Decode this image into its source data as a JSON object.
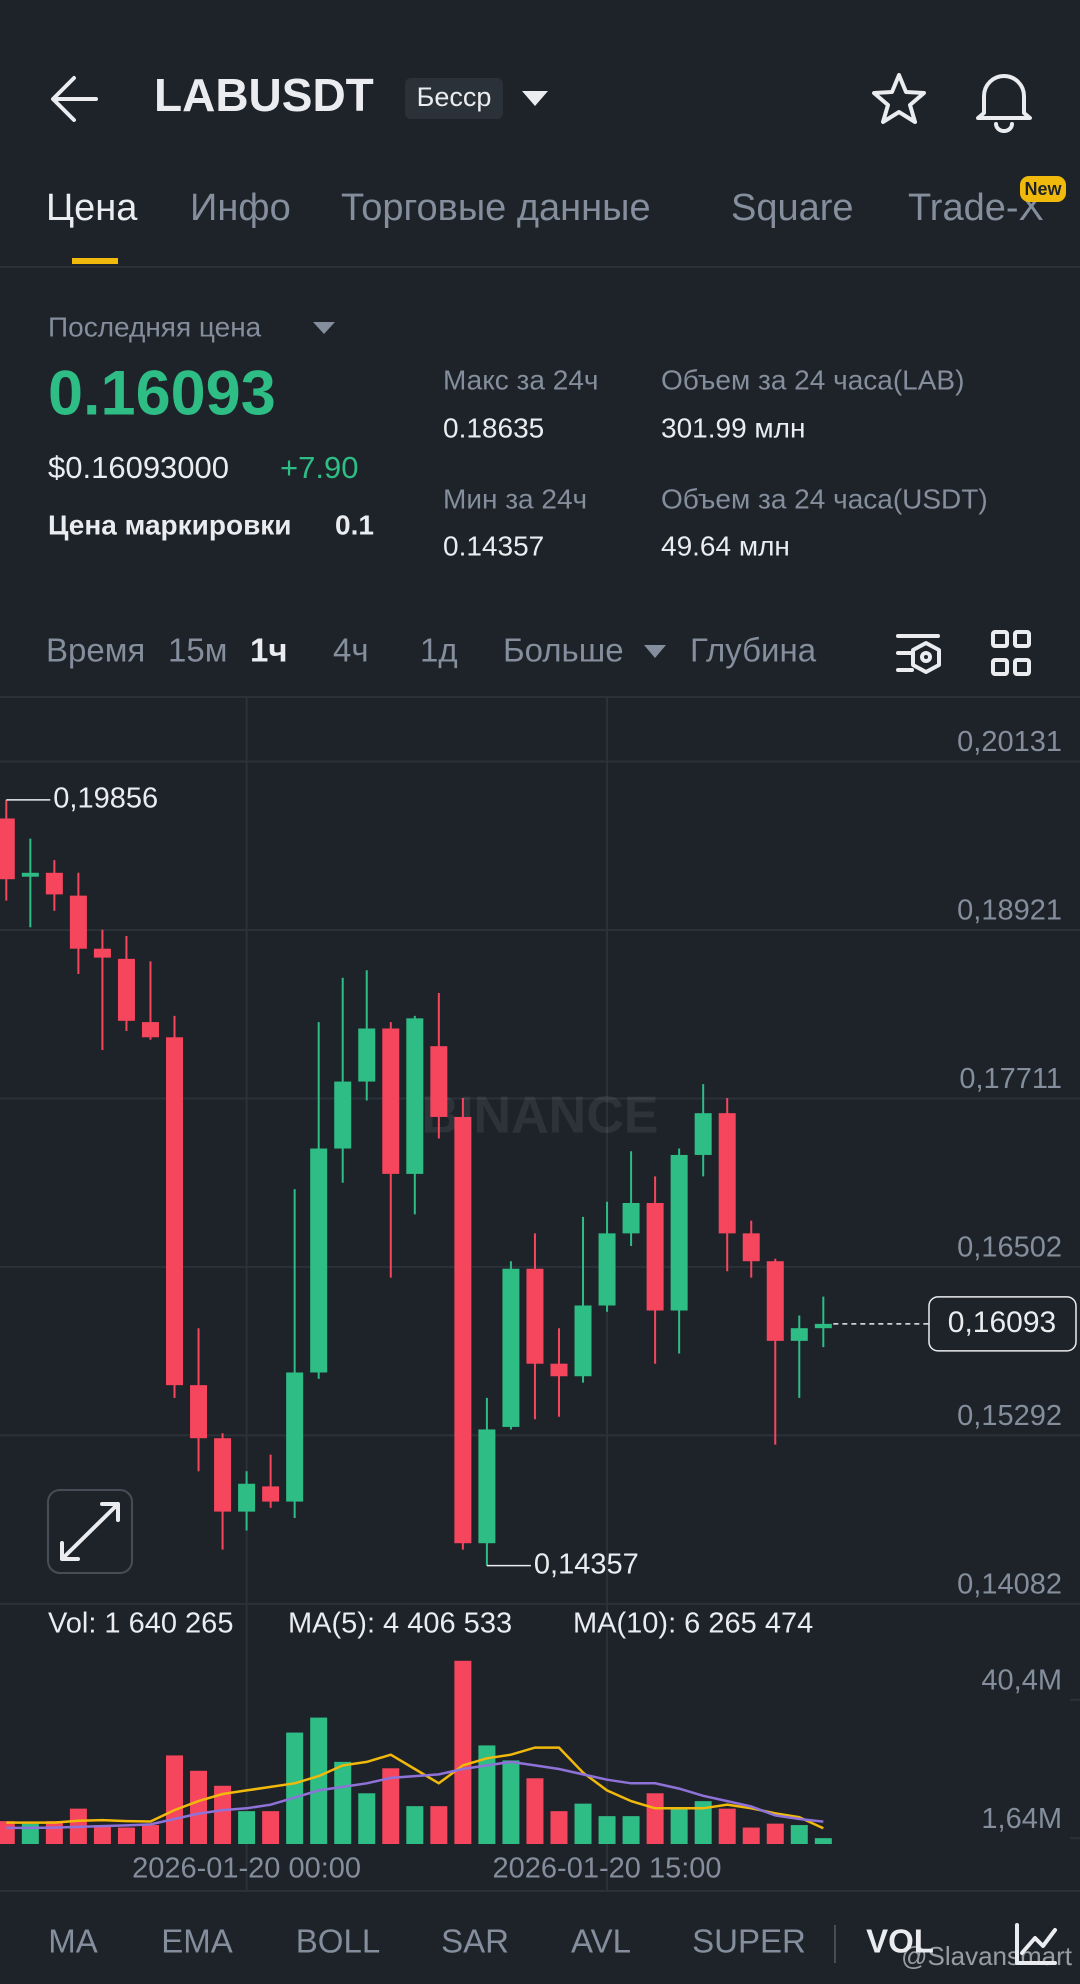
{
  "header": {
    "symbol": "LABUSDT",
    "badge": "Бесср"
  },
  "tabs": {
    "items": [
      "Цена",
      "Инфо",
      "Торговые данные",
      "Square",
      "Trade-X"
    ],
    "new_badge": "New"
  },
  "price_panel": {
    "last_price_label": "Последняя цена",
    "last_price": "0.16093",
    "usd_price": "$0.16093000",
    "change": "+7.90",
    "mark_label": "Цена маркировки",
    "mark_value": "0.1",
    "stats": [
      {
        "label": "Макс за 24ч",
        "value": "0.18635"
      },
      {
        "label": "Мин за 24ч",
        "value": "0.14357"
      },
      {
        "label": "Объем за 24 часа(LAB)",
        "value": "301.99 млн"
      },
      {
        "label": "Объем за 24 часа(USDT)",
        "value": "49.64 млн"
      }
    ]
  },
  "timeframes": {
    "items": [
      "Время",
      "15м",
      "1ч",
      "4ч",
      "1д",
      "Больше",
      "Глубина"
    ]
  },
  "indicators": {
    "items": [
      "MA",
      "EMA",
      "BOLL",
      "SAR",
      "AVL",
      "SUPER",
      "VOL"
    ]
  },
  "watermark": "@Slavansmart",
  "chart_data": [
    {
      "type": "candlestick",
      "watermark": "BINANCE",
      "categories": [
        null,
        null,
        null,
        null,
        null,
        null,
        null,
        null,
        null,
        null,
        "2026-01-20 00:00",
        null,
        null,
        null,
        null,
        null,
        null,
        null,
        null,
        null,
        null,
        null,
        null,
        null,
        null,
        "2026-01-20 15:00",
        null,
        null,
        null,
        null,
        null,
        null,
        null,
        null,
        null
      ],
      "open": [
        0.19722,
        0.19304,
        0.19332,
        0.19168,
        0.18787,
        0.18714,
        0.1826,
        0.18151,
        0.15653,
        0.15272,
        0.14745,
        0.14926,
        0.14817,
        0.15744,
        0.17352,
        0.17833,
        0.18214,
        0.1717,
        0.18087,
        0.17579,
        0.14518,
        0.15353,
        0.16489,
        0.15807,
        0.15717,
        0.16225,
        0.16743,
        0.16961,
        0.16189,
        0.17306,
        0.17606,
        0.16743,
        0.16543,
        0.15971,
        0.16062
      ],
      "high": [
        0.19856,
        0.19577,
        0.19423,
        0.19332,
        0.18923,
        0.18878,
        0.18696,
        0.18305,
        0.16062,
        0.15308,
        0.15035,
        0.15154,
        0.17061,
        0.1826,
        0.18578,
        0.18632,
        0.1826,
        0.18305,
        0.18469,
        0.17715,
        0.15562,
        0.16543,
        0.16743,
        0.16062,
        0.16861,
        0.1697,
        0.17333,
        0.17152,
        0.17352,
        0.17815,
        0.17715,
        0.16834,
        0.16561,
        0.16153,
        0.16289
      ],
      "low": [
        0.19132,
        0.18941,
        0.19059,
        0.18605,
        0.1806,
        0.18196,
        0.18133,
        0.15562,
        0.15035,
        0.14472,
        0.14609,
        0.14772,
        0.14699,
        0.15698,
        0.17106,
        0.17697,
        0.16425,
        0.16879,
        0.17424,
        0.14472,
        0.14357,
        0.15335,
        0.15408,
        0.15426,
        0.15671,
        0.1618,
        0.16652,
        0.15807,
        0.1588,
        0.17152,
        0.16471,
        0.16425,
        0.15226,
        0.15562,
        0.15926
      ],
      "close": [
        0.19286,
        0.19332,
        0.19177,
        0.18787,
        0.18723,
        0.18269,
        0.18151,
        0.15653,
        0.15272,
        0.14745,
        0.14945,
        0.14817,
        0.15744,
        0.17352,
        0.17833,
        0.18214,
        0.1717,
        0.18287,
        0.17579,
        0.14518,
        0.15335,
        0.16489,
        0.15807,
        0.15717,
        0.16225,
        0.16743,
        0.16961,
        0.16189,
        0.17306,
        0.17606,
        0.16743,
        0.16543,
        0.15971,
        0.16062,
        0.16093
      ],
      "up_color": "#2ebd85",
      "down_color": "#f6465d",
      "ylim": [
        0.1406,
        0.2058
      ],
      "yticks": [
        {
          "value": 0.20131,
          "label": "0,20131"
        },
        {
          "value": 0.18921,
          "label": "0,18921"
        },
        {
          "value": 0.17711,
          "label": "0,17711"
        },
        {
          "value": 0.16502,
          "label": "0,16502"
        },
        {
          "value": 0.15292,
          "label": "0,15292"
        },
        {
          "value": 0.14082,
          "label": "0,14082"
        }
      ],
      "grid": true,
      "max_label": {
        "value": 0.19856,
        "label": "0,19856"
      },
      "min_label": {
        "value": 0.14357,
        "label": "0,14357"
      },
      "last_price": {
        "value": 0.16093,
        "label": "0,16093"
      }
    },
    {
      "type": "bar",
      "values": [
        6400000,
        5700000,
        6400000,
        9900000,
        5300000,
        4600000,
        5300000,
        24800000,
        20500000,
        16300000,
        9200000,
        9200000,
        31200000,
        35400000,
        23000000,
        14200000,
        21200000,
        10600000,
        10600000,
        51300000,
        27600000,
        23400000,
        18400000,
        9200000,
        11300000,
        7800000,
        7800000,
        14200000,
        9900000,
        12000000,
        9900000,
        4600000,
        5700000,
        5300000,
        1640265
      ],
      "lines": [
        {
          "color": "#f0b90b",
          "values": [
            6000000,
            6000000,
            6000000,
            6500000,
            6700000,
            6400000,
            6300000,
            9500000,
            12000000,
            14000000,
            15000000,
            16000000,
            17000000,
            19000000,
            22000000,
            23000000,
            25000000,
            21000000,
            17000000,
            22000000,
            24000000,
            25000000,
            27000000,
            27000000,
            20000000,
            15000000,
            12000000,
            10000000,
            10000000,
            10000000,
            11000000,
            10000000,
            8600000,
            7500000,
            4406533
          ]
        },
        {
          "color": "#8e72d8",
          "values": [
            4500000,
            4500000,
            4600000,
            4800000,
            5000000,
            5200000,
            5500000,
            7000000,
            8500000,
            9500000,
            10000000,
            11000000,
            13000000,
            15000000,
            16000000,
            17000000,
            18500000,
            19000000,
            19500000,
            21000000,
            22000000,
            23000000,
            22000000,
            21000000,
            19500000,
            18000000,
            17000000,
            17000000,
            15500000,
            13500000,
            12000000,
            10500000,
            8000000,
            7000000,
            6265474
          ]
        }
      ],
      "legend": [
        {
          "text": "Vol: 1 640 265",
          "color": "#848e9c"
        },
        {
          "text": "MA(5): 4 406 533",
          "color": "#f0b90b"
        },
        {
          "text": "MA(10): 6 265 474",
          "color": "#8e72d8"
        }
      ],
      "ylim": [
        0,
        56000000
      ],
      "yticks": [
        {
          "value": 40400000,
          "label": "40,4M"
        },
        {
          "value": 1640000,
          "label": "1,64M"
        }
      ]
    }
  ]
}
